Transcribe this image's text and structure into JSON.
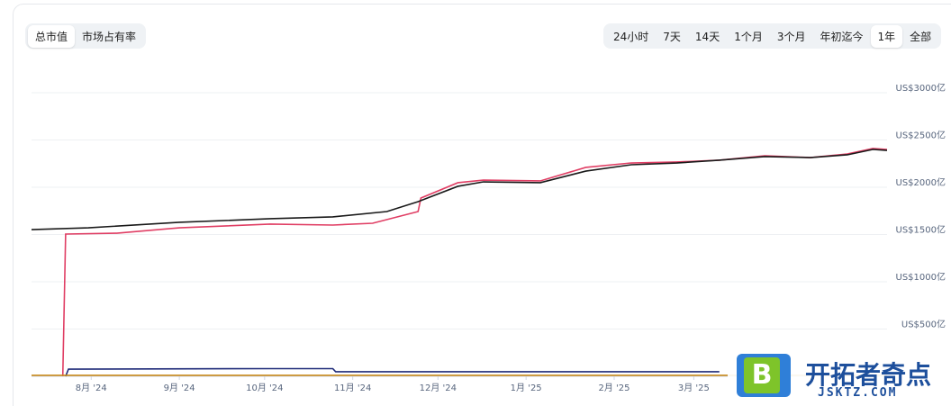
{
  "tabs": {
    "metric": [
      "总市值",
      "市场占有率"
    ],
    "active_metric": 0,
    "range": [
      "24小时",
      "7天",
      "14天",
      "1个月",
      "3个月",
      "年初迄今",
      "1年",
      "全部"
    ],
    "active_range": 6
  },
  "watermark": {
    "logo": "B",
    "name": "开拓者奇点",
    "url": "JSKTZ.COM"
  },
  "chart_data": {
    "type": "line",
    "xlim": [
      0,
      301
    ],
    "xticks": [
      {
        "value": 21,
        "label": "8月 '24"
      },
      {
        "value": 52,
        "label": "9月 '24"
      },
      {
        "value": 82,
        "label": "10月 '24"
      },
      {
        "value": 113,
        "label": "11月 '24"
      },
      {
        "value": 143,
        "label": "12月 '24"
      },
      {
        "value": 174,
        "label": "1月 '25"
      },
      {
        "value": 205,
        "label": "2月 '25"
      },
      {
        "value": 233,
        "label": "3月 '25"
      }
    ],
    "ylim": [
      0,
      3000
    ],
    "yticks": [
      {
        "value": 500,
        "label": "US$500亿"
      },
      {
        "value": 1000,
        "label": "US$1000亿"
      },
      {
        "value": 1500,
        "label": "US$1500亿"
      },
      {
        "value": 2000,
        "label": "US$2000亿"
      },
      {
        "value": 2500,
        "label": "US$2500亿"
      },
      {
        "value": 3000,
        "label": "US$3000亿"
      }
    ],
    "grid": true,
    "series": [
      {
        "color": "#e03e64",
        "x": [
          11,
          12,
          30,
          52,
          84,
          106,
          120,
          136,
          137,
          150,
          159,
          179,
          195,
          211,
          227,
          242,
          258,
          274,
          287,
          296,
          301
        ],
        "values": [
          0,
          1505,
          1514,
          1571,
          1610,
          1600,
          1619,
          1743,
          1886,
          2048,
          2076,
          2067,
          2210,
          2257,
          2267,
          2286,
          2333,
          2314,
          2352,
          2410,
          2400
        ]
      },
      {
        "color": "#1a1a1a",
        "x": [
          0,
          20,
          52,
          84,
          106,
          125,
          136,
          150,
          159,
          179,
          195,
          211,
          227,
          242,
          258,
          274,
          287,
          296,
          301
        ],
        "values": [
          1552,
          1571,
          1629,
          1667,
          1686,
          1743,
          1848,
          2010,
          2057,
          2048,
          2171,
          2238,
          2257,
          2286,
          2324,
          2314,
          2343,
          2400,
          2390
        ]
      },
      {
        "color": "#1e2a78",
        "x": [
          12,
          13,
          84,
          106,
          107,
          242
        ],
        "values": [
          0,
          76,
          81,
          81,
          48,
          48
        ]
      },
      {
        "color": "#c98a1a",
        "x": [
          0,
          301
        ],
        "values": [
          10,
          10
        ]
      }
    ]
  }
}
